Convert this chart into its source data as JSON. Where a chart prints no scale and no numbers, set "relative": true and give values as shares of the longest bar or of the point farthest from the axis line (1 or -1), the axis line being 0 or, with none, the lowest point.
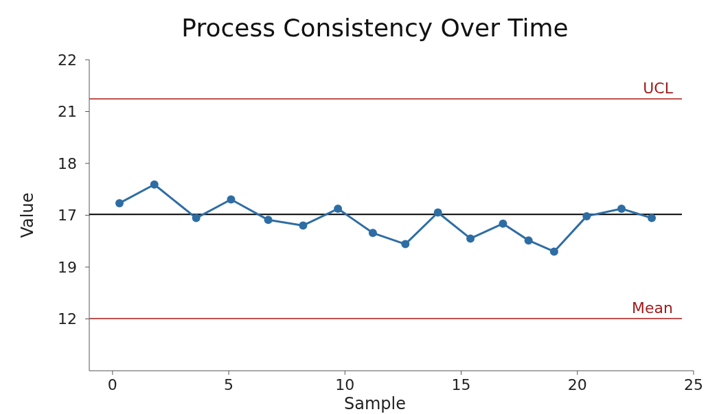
{
  "chart_data": {
    "type": "line",
    "title": "Process Consistency Over Time",
    "xlabel": "Sample",
    "ylabel": "Value",
    "relative": true,
    "x": [
      0.3,
      1.8,
      3.6,
      5.1,
      6.7,
      8.2,
      9.7,
      11.2,
      12.6,
      14.0,
      15.4,
      16.8,
      17.9,
      19.0,
      20.4,
      21.9,
      23.2
    ],
    "series": [
      {
        "color": "#2e6da4",
        "values": [
          0.9,
          1,
          0.82,
          0.92,
          0.81,
          0.78,
          0.87,
          0.74,
          0.68,
          0.85,
          0.71,
          0.79,
          0.7,
          0.64,
          0.83,
          0.87,
          0.82
        ]
      }
    ],
    "xlim": [
      -1,
      25
    ],
    "xticks": [
      0,
      5,
      10,
      15,
      20,
      25
    ],
    "annotations": [
      "22",
      "21",
      "18",
      "17",
      "19",
      "12"
    ],
    "ref_lines": [
      {
        "axis": "y",
        "value": 1.46,
        "label": "UCL",
        "color": "#c0504d"
      },
      {
        "axis": "y",
        "value": 0.84,
        "label": null,
        "color": "#000000"
      },
      {
        "axis": "y",
        "value": 0.28,
        "label": "Mean",
        "color": "#c0504d"
      }
    ],
    "marker": "circle",
    "line_style": "solid"
  }
}
